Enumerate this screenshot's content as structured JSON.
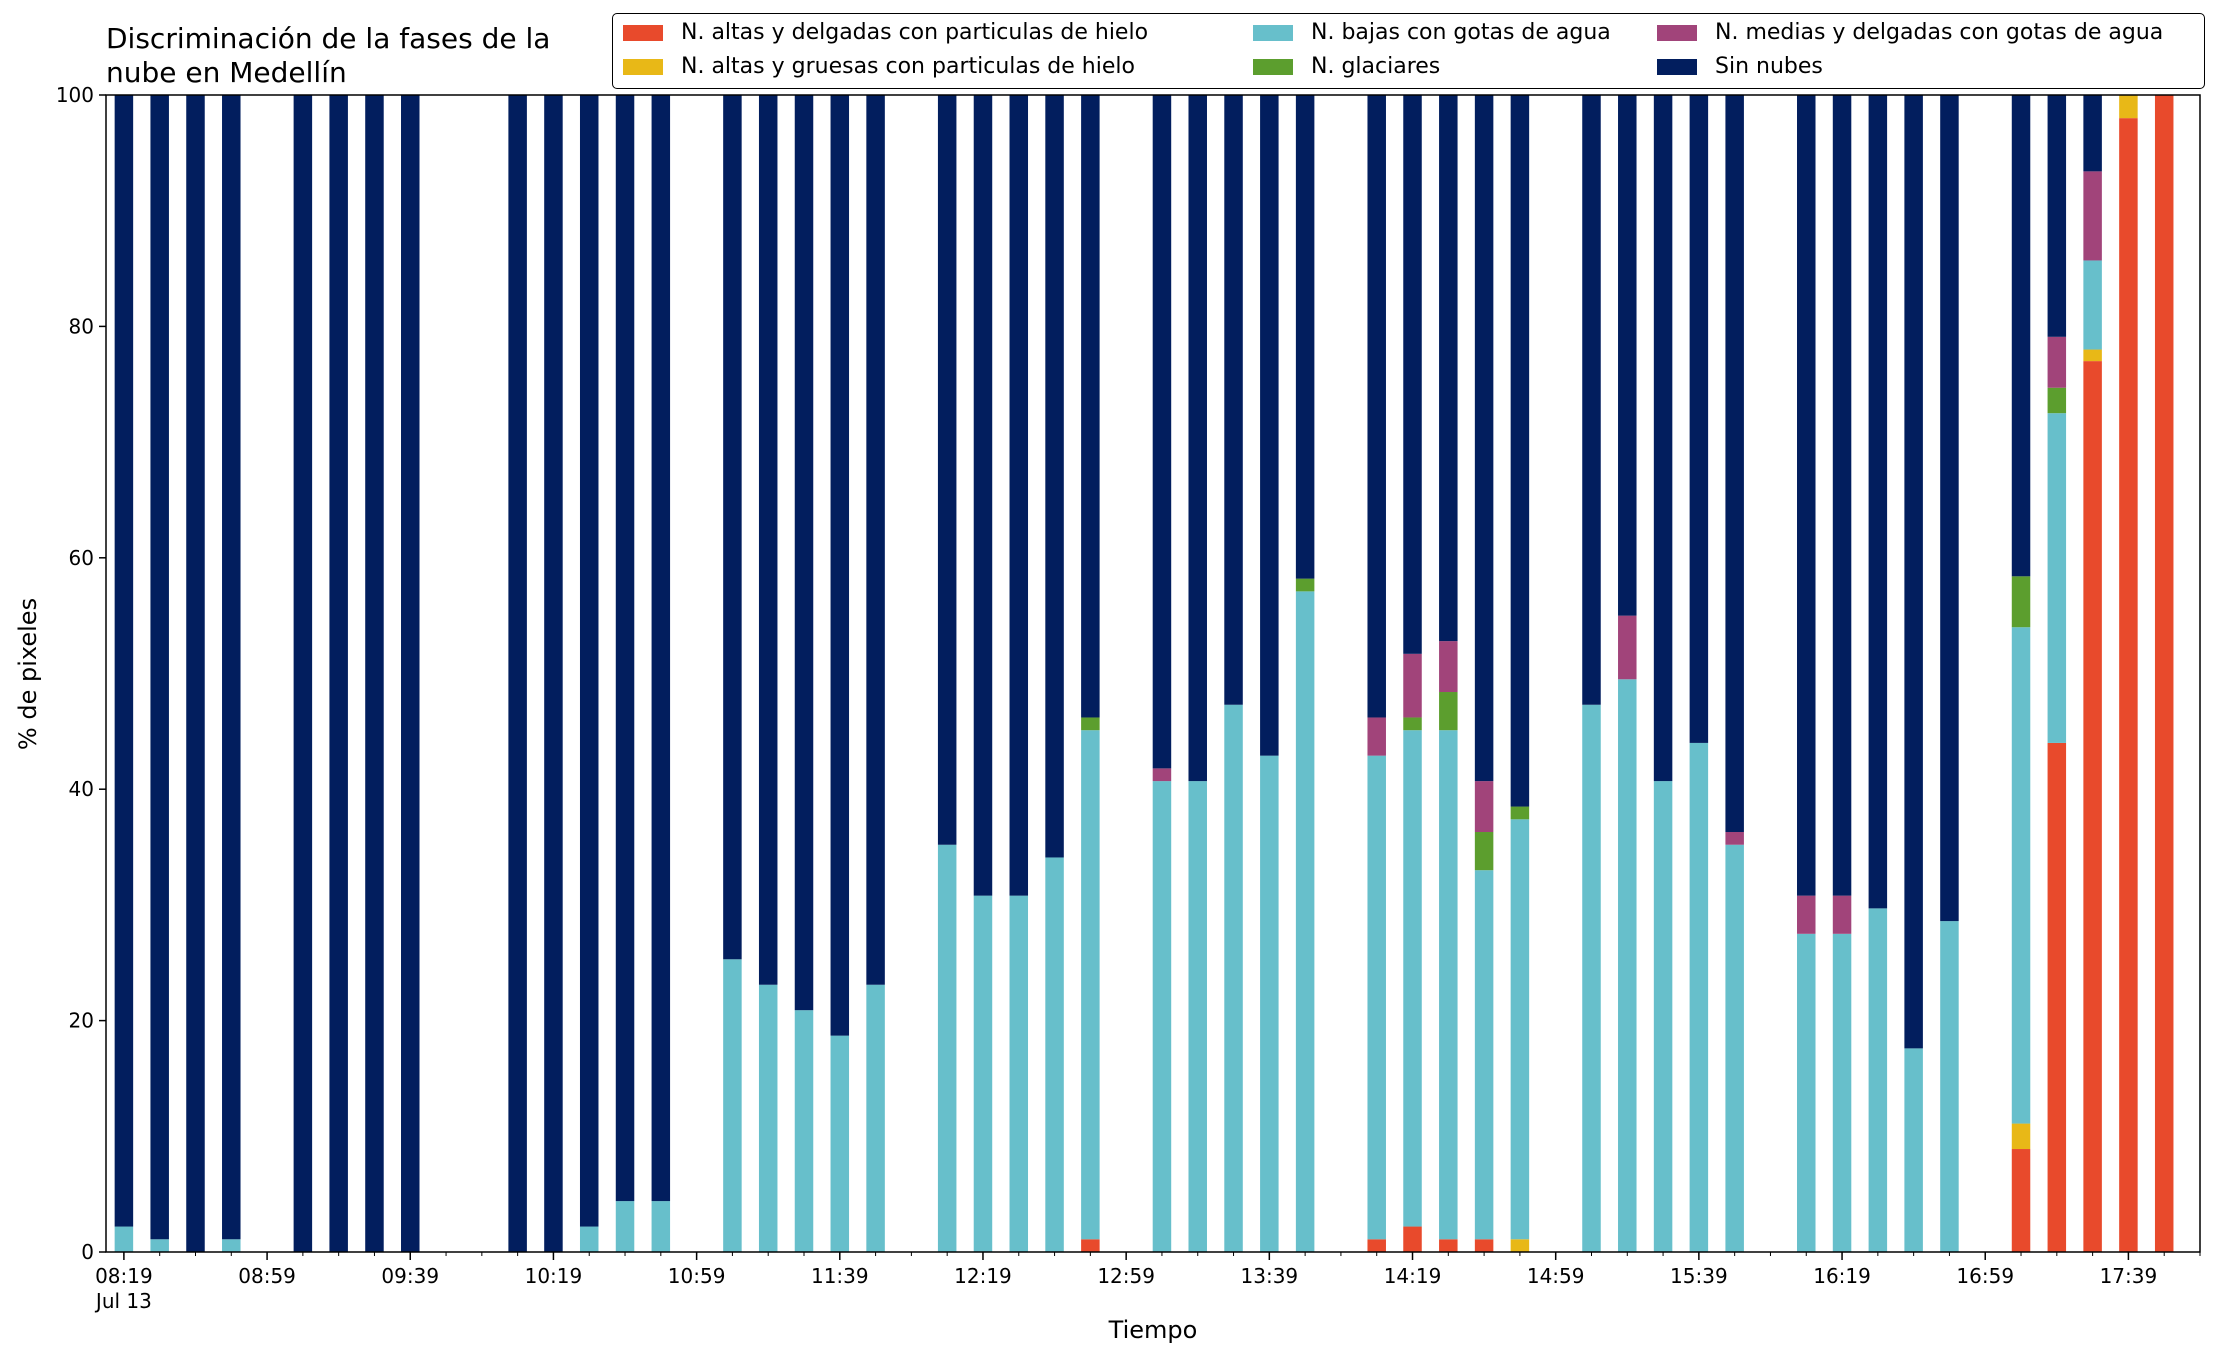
{
  "chart_data": {
    "type": "bar",
    "stacked": true,
    "title": "Discriminación de la fases de la nube en Medellín",
    "title_lines": [
      "Discriminación de la fases de la",
      "nube en Medellín"
    ],
    "xlabel": "Tiempo",
    "ylabel": "% de pixeles",
    "ylim": [
      0,
      100
    ],
    "yticks": [
      0,
      20,
      40,
      60,
      80,
      100
    ],
    "grid": false,
    "legend_position": "top-right",
    "x_tick_labels": [
      "08:19",
      "08:59",
      "09:39",
      "10:19",
      "10:59",
      "11:39",
      "12:19",
      "12:59",
      "13:39",
      "14:19",
      "14:59",
      "15:39",
      "16:19",
      "16:59",
      "17:39"
    ],
    "x_date_label": "Jul 13",
    "x": [
      "08:19",
      "08:29",
      "08:39",
      "08:49",
      "09:09",
      "09:19",
      "09:29",
      "09:39",
      "10:09",
      "10:19",
      "10:29",
      "10:39",
      "10:49",
      "11:09",
      "11:19",
      "11:29",
      "11:39",
      "11:49",
      "12:09",
      "12:19",
      "12:29",
      "12:39",
      "12:49",
      "13:09",
      "13:19",
      "13:29",
      "13:39",
      "13:49",
      "14:09",
      "14:19",
      "14:29",
      "14:39",
      "14:49",
      "15:09",
      "15:19",
      "15:29",
      "15:39",
      "15:49",
      "16:09",
      "16:19",
      "16:29",
      "16:39",
      "16:49",
      "17:09",
      "17:19",
      "17:29",
      "17:39",
      "17:49"
    ],
    "series": [
      {
        "name": "N. altas y delgadas con particulas de hielo",
        "color": "#e84a2c",
        "values": [
          0,
          0,
          0,
          0,
          0,
          0,
          0,
          0,
          0,
          0,
          0,
          0,
          0,
          0,
          0,
          0,
          0,
          0,
          0,
          0,
          0,
          0,
          1.1,
          0,
          0,
          0,
          0,
          0,
          1.1,
          2.2,
          1.1,
          1.1,
          0,
          0,
          0,
          0,
          0,
          0,
          0,
          0,
          0,
          0,
          0,
          8.9,
          44,
          77,
          98,
          100
        ]
      },
      {
        "name": "N. altas y gruesas con particulas de hielo",
        "color": "#e8b817",
        "values": [
          0,
          0,
          0,
          0,
          0,
          0,
          0,
          0,
          0,
          0,
          0,
          0,
          0,
          0,
          0,
          0,
          0,
          0,
          0,
          0,
          0,
          0,
          0,
          0,
          0,
          0,
          0,
          0,
          0,
          0,
          0,
          0,
          1.1,
          0,
          0,
          0,
          0,
          0,
          0,
          0,
          0,
          0,
          0,
          2.2,
          0,
          1.0,
          2.0,
          0
        ]
      },
      {
        "name": "N. bajas con gotas de agua",
        "color": "#67bfcb",
        "values": [
          2.2,
          1.1,
          0,
          1.1,
          0,
          0,
          0,
          0,
          0,
          0,
          2.2,
          4.4,
          4.4,
          25.3,
          23.1,
          20.9,
          18.7,
          23.1,
          35.2,
          30.8,
          30.8,
          34.1,
          44,
          40.7,
          40.7,
          47.3,
          42.9,
          57.1,
          41.8,
          42.9,
          44,
          31.9,
          36.3,
          47.3,
          49.5,
          40.7,
          44,
          35.2,
          27.5,
          27.5,
          29.7,
          17.6,
          28.6,
          42.9,
          28.5,
          7.7,
          0,
          0
        ]
      },
      {
        "name": "N. glaciares",
        "color": "#5c9e2e",
        "values": [
          0,
          0,
          0,
          0,
          0,
          0,
          0,
          0,
          0,
          0,
          0,
          0,
          0,
          0,
          0,
          0,
          0,
          0,
          0,
          0,
          0,
          0,
          1.1,
          0,
          0,
          0,
          0,
          1.1,
          0,
          1.1,
          3.3,
          3.3,
          1.1,
          0,
          0,
          0,
          0,
          0,
          0,
          0,
          0,
          0,
          0,
          4.4,
          2.2,
          0,
          0,
          0
        ]
      },
      {
        "name": "N. medias y delgadas con gotas de agua",
        "color": "#a1447a",
        "values": [
          0,
          0,
          0,
          0,
          0,
          0,
          0,
          0,
          0,
          0,
          0,
          0,
          0,
          0,
          0,
          0,
          0,
          0,
          0,
          0,
          0,
          0,
          0,
          1.1,
          0,
          0,
          0,
          0,
          3.3,
          5.5,
          4.4,
          4.4,
          0,
          0,
          5.5,
          0,
          0,
          1.1,
          3.3,
          3.3,
          0,
          0,
          0,
          0,
          4.4,
          7.7,
          0,
          0
        ]
      },
      {
        "name": "Sin nubes",
        "color": "#021e5e",
        "values": [
          97.8,
          98.9,
          100,
          98.9,
          100,
          100,
          100,
          100,
          100,
          100,
          97.8,
          95.6,
          95.6,
          74.7,
          76.9,
          79.1,
          81.3,
          76.9,
          64.8,
          69.2,
          69.2,
          65.9,
          53.8,
          58.2,
          59.3,
          52.7,
          57.1,
          41.8,
          53.8,
          48.3,
          47.2,
          59.3,
          61.5,
          52.7,
          45,
          59.3,
          56,
          63.7,
          69.2,
          69.2,
          70.3,
          82.4,
          71.4,
          41.6,
          20.9,
          6.6,
          0,
          0
        ]
      }
    ]
  }
}
